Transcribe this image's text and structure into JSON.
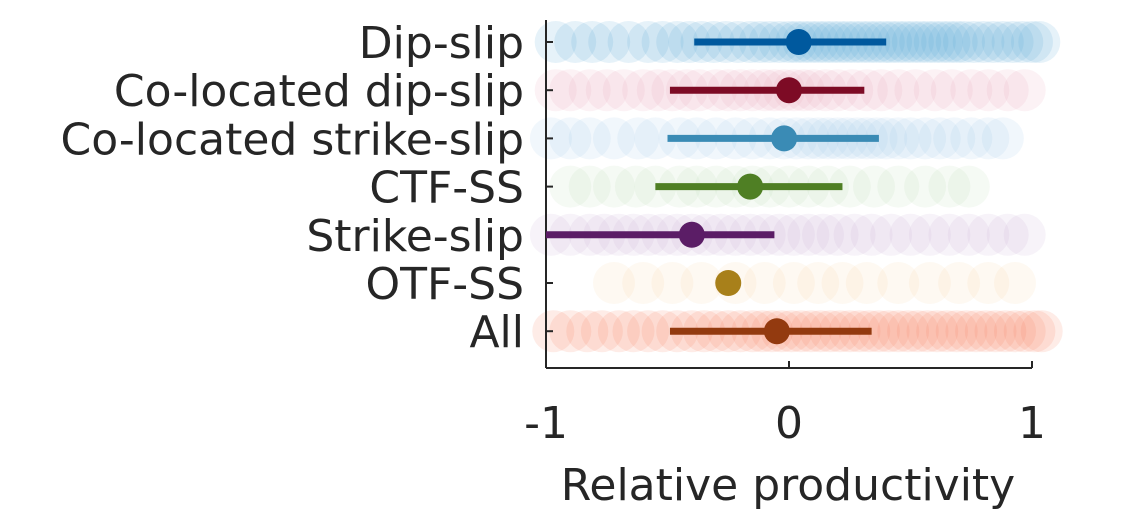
{
  "chart_data": {
    "type": "scatter",
    "title": "",
    "xlabel": "Relative productivity",
    "ylabel": "",
    "xlim": [
      -1,
      1
    ],
    "xticks": [
      {
        "value": -1,
        "label": "-1"
      },
      {
        "value": 0,
        "label": "0"
      },
      {
        "value": 1,
        "label": "1"
      }
    ],
    "grid": false,
    "categories": [
      "Dip-slip",
      "Co-located dip-slip",
      "Co-located strike-slip",
      "CTF-SS",
      "Strike-slip",
      "OTF-SS",
      "All"
    ],
    "series": [
      {
        "category": "Dip-slip",
        "color": "#00599e",
        "cloud_color": "#4ba3d6",
        "mean": 0.04,
        "ci": [
          -0.39,
          0.4
        ],
        "samples": [
          -0.96,
          -0.88,
          -0.81,
          -0.74,
          -0.66,
          -0.58,
          -0.52,
          -0.46,
          -0.41,
          -0.36,
          -0.31,
          -0.26,
          -0.21,
          -0.16,
          -0.12,
          -0.08,
          -0.04,
          0.0,
          0.03,
          0.06,
          0.09,
          0.12,
          0.15,
          0.18,
          0.21,
          0.24,
          0.27,
          0.3,
          0.33,
          0.36,
          0.39,
          0.42,
          0.45,
          0.48,
          0.51,
          0.54,
          0.57,
          0.6,
          0.63,
          0.66,
          0.69,
          0.72,
          0.76,
          0.8,
          0.84,
          0.88,
          0.92,
          0.96,
          1.0,
          1.03
        ]
      },
      {
        "category": "Co-located dip-slip",
        "color": "#7d0b25",
        "cloud_color": "#e8a0bb",
        "mean": 0.0,
        "ci": [
          -0.49,
          0.31
        ],
        "samples": [
          -0.96,
          -0.9,
          -0.82,
          -0.75,
          -0.68,
          -0.6,
          -0.54,
          -0.48,
          -0.42,
          -0.37,
          -0.3,
          -0.25,
          -0.2,
          -0.15,
          -0.1,
          -0.06,
          -0.02,
          0.02,
          0.06,
          0.1,
          0.15,
          0.2,
          0.26,
          0.32,
          0.38,
          0.45,
          0.52,
          0.6,
          0.67,
          0.75,
          0.82,
          0.9,
          0.97
        ]
      },
      {
        "category": "Co-located strike-slip",
        "color": "#3a8bb5",
        "cloud_color": "#9ac8ec",
        "mean": -0.02,
        "ci": [
          -0.5,
          0.37
        ],
        "samples": [
          -0.98,
          -0.9,
          -0.82,
          -0.72,
          -0.62,
          -0.55,
          -0.45,
          -0.38,
          -0.3,
          -0.22,
          -0.15,
          -0.08,
          -0.02,
          0.03,
          0.08,
          0.12,
          0.16,
          0.2,
          0.24,
          0.28,
          0.32,
          0.36,
          0.4,
          0.45,
          0.5,
          0.56,
          0.62,
          0.68,
          0.75,
          0.82,
          0.88
        ]
      },
      {
        "category": "CTF-SS",
        "color": "#4f7f24",
        "cloud_color": "#b7dcb0",
        "mean": -0.16,
        "ci": [
          -0.55,
          0.22
        ],
        "samples": [
          -0.9,
          -0.82,
          -0.72,
          -0.63,
          -0.55,
          -0.45,
          -0.38,
          -0.3,
          -0.22,
          -0.15,
          -0.08,
          0.0,
          0.08,
          0.16,
          0.25,
          0.35,
          0.45,
          0.56,
          0.66,
          0.74
        ]
      },
      {
        "category": "Strike-slip",
        "color": "#5b1d66",
        "cloud_color": "#c9a7d6",
        "mean": -0.4,
        "ci": [
          -1.0,
          -0.06
        ],
        "samples": [
          -0.98,
          -0.9,
          -0.82,
          -0.76,
          -0.7,
          -0.64,
          -0.58,
          -0.52,
          -0.46,
          -0.4,
          -0.34,
          -0.28,
          -0.22,
          -0.16,
          -0.1,
          -0.04,
          0.02,
          0.08,
          0.14,
          0.2,
          0.27,
          0.34,
          0.42,
          0.5,
          0.58,
          0.66,
          0.74,
          0.82,
          0.9,
          0.97
        ]
      },
      {
        "category": "OTF-SS",
        "color": "#a8801a",
        "cloud_color": "#f6d4a2",
        "mean": -0.25,
        "ci": [
          -0.25,
          -0.25
        ],
        "samples": [
          -0.72,
          -0.6,
          -0.48,
          -0.36,
          -0.22,
          -0.1,
          0.02,
          0.12,
          0.22,
          0.32,
          0.45,
          0.58,
          0.7,
          0.82,
          0.93
        ]
      },
      {
        "category": "All",
        "color": "#933a0f",
        "cloud_color": "#f57a57",
        "mean": -0.05,
        "ci": [
          -0.49,
          0.34
        ],
        "samples": [
          -0.97,
          -0.9,
          -0.83,
          -0.77,
          -0.7,
          -0.64,
          -0.58,
          -0.52,
          -0.46,
          -0.4,
          -0.35,
          -0.3,
          -0.25,
          -0.2,
          -0.15,
          -0.11,
          -0.07,
          -0.03,
          0.01,
          0.05,
          0.09,
          0.13,
          0.17,
          0.21,
          0.25,
          0.29,
          0.33,
          0.37,
          0.41,
          0.45,
          0.49,
          0.53,
          0.57,
          0.61,
          0.65,
          0.69,
          0.73,
          0.77,
          0.81,
          0.85,
          0.89,
          0.93,
          0.97,
          1.01,
          1.04
        ]
      }
    ]
  }
}
